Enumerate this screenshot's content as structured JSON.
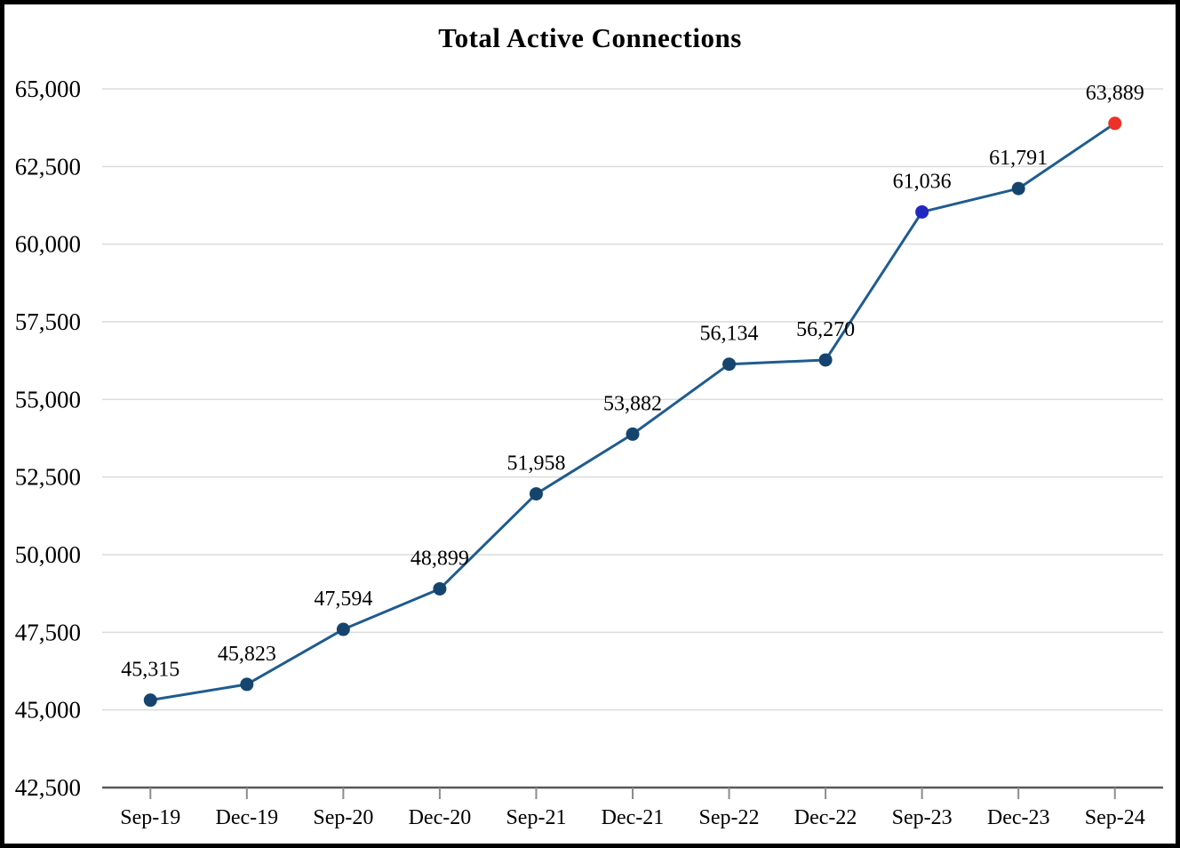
{
  "page": {
    "background": "#FFFFFF",
    "border_color": "#000000"
  },
  "chart_data": {
    "type": "line",
    "title": "Total Active Connections",
    "categories": [
      "Sep-19",
      "Dec-19",
      "Sep-20",
      "Dec-20",
      "Sep-21",
      "Dec-21",
      "Sep-22",
      "Dec-22",
      "Sep-23",
      "Dec-23",
      "Sep-24"
    ],
    "series": [
      {
        "name": "Total Active Connections",
        "values": [
          45315,
          45823,
          47594,
          48899,
          51958,
          53882,
          56134,
          56270,
          61036,
          61791,
          63889
        ],
        "data_labels": [
          "45,315",
          "45,823",
          "47,594",
          "48,899",
          "51,958",
          "53,882",
          "56,134",
          "56,270",
          "61,036",
          "61,791",
          "63,889"
        ],
        "line_color": "#1F5C8F",
        "marker_color_default": "#15456F",
        "marker_color_overrides": {
          "8": "#2028C0",
          "10": "#ED3126"
        }
      }
    ],
    "ylim": [
      42500,
      65000
    ],
    "ytick_step": 2500,
    "ytick_labels": [
      "42,500",
      "45,000",
      "47,500",
      "50,000",
      "52,500",
      "55,000",
      "57,500",
      "60,000",
      "62,500",
      "65,000"
    ],
    "xlabel": "",
    "ylabel": "",
    "grid": true,
    "legend": "none",
    "label_placement": "above-points",
    "gridline_color": "#DCDCDC",
    "axis_line_color": "#595959",
    "tick_color": "#8C8C8C",
    "label_color": "#000000"
  }
}
